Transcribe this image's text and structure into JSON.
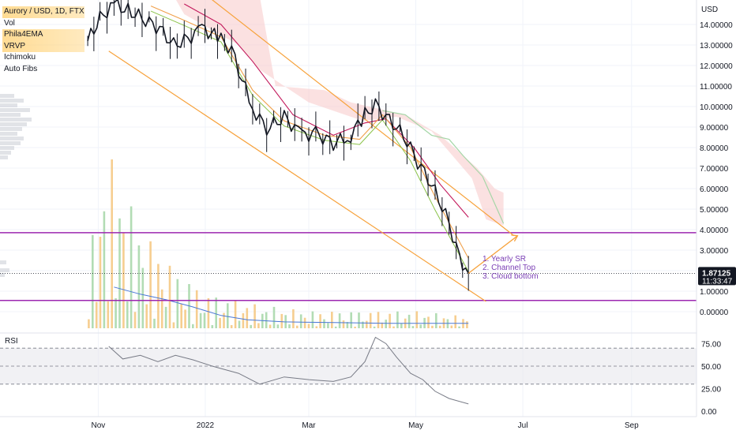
{
  "legend": {
    "symbol": "Aurory / USD, 1D, FTX",
    "indicators": [
      "Vol",
      "Phila4EMA",
      "VRVP",
      "Ichimoku",
      "Auto Fibs"
    ]
  },
  "chart_data": {
    "type": "line",
    "title": "Aurory / USD, 1D, FTX",
    "currency": "USD",
    "price_axis_ticks": [
      "14.00000",
      "13.00000",
      "12.00000",
      "11.00000",
      "10.00000",
      "9.00000",
      "8.00000",
      "7.00000",
      "6.00000",
      "5.00000",
      "4.00000",
      "3.00000",
      "2.00000",
      "1.00000",
      "0.00000"
    ],
    "price_range": [
      -0.7,
      15.4
    ],
    "time_labels": [
      "Nov",
      "2022",
      "Mar",
      "May",
      "Jul",
      "Sep"
    ],
    "time_label_dates": [
      "2021-11-01",
      "2022-01-01",
      "2022-03-01",
      "2022-05-01",
      "2022-07-01",
      "2022-09-01"
    ],
    "last_price": "1.87125",
    "countdown": "11:33:47",
    "series": [
      {
        "name": "Aurory / USD",
        "x": [
          "2021-10-26",
          "2021-11-02",
          "2021-11-10",
          "2021-11-20",
          "2021-11-28",
          "2021-12-06",
          "2021-12-14",
          "2021-12-22",
          "2021-12-30",
          "2022-01-08",
          "2022-01-16",
          "2022-01-22",
          "2022-01-28",
          "2022-02-05",
          "2022-02-15",
          "2022-02-25",
          "2022-03-05",
          "2022-03-15",
          "2022-03-25",
          "2022-04-02",
          "2022-04-08",
          "2022-04-14",
          "2022-04-20",
          "2022-04-26",
          "2022-05-02",
          "2022-05-08",
          "2022-05-14",
          "2022-05-20",
          "2022-05-26",
          "2022-05-31"
        ],
        "values": [
          13.2,
          14.3,
          15.0,
          14.6,
          14.2,
          13.8,
          13.0,
          13.3,
          13.8,
          13.4,
          12.8,
          11.3,
          9.9,
          8.9,
          9.5,
          8.6,
          8.7,
          8.2,
          8.6,
          9.6,
          10.1,
          9.5,
          9.0,
          8.3,
          7.3,
          6.5,
          5.5,
          4.3,
          2.6,
          1.87
        ]
      },
      {
        "name": "EMA fast",
        "x": [
          "2021-12-01",
          "2021-12-20",
          "2022-01-10",
          "2022-01-28",
          "2022-02-15",
          "2022-03-10",
          "2022-03-30",
          "2022-04-12",
          "2022-04-28",
          "2022-05-12",
          "2022-05-31"
        ],
        "values": [
          14.9,
          14.2,
          13.4,
          10.8,
          9.3,
          8.6,
          8.4,
          9.6,
          8.0,
          5.6,
          2.6
        ]
      },
      {
        "name": "EMA slow",
        "x": [
          "2021-12-20",
          "2022-01-10",
          "2022-01-28",
          "2022-02-20",
          "2022-03-15",
          "2022-04-02",
          "2022-04-14",
          "2022-04-30",
          "2022-05-15",
          "2022-05-31"
        ],
        "values": [
          15.0,
          14.0,
          12.2,
          9.6,
          8.6,
          9.2,
          9.4,
          8.0,
          6.2,
          4.6
        ]
      },
      {
        "name": "Volume",
        "x": [
          "2021-10-26",
          "2021-11-03",
          "2021-11-10",
          "2021-11-18",
          "2021-12-01",
          "2021-12-15",
          "2022-01-01",
          "2022-02-01",
          "2022-03-01",
          "2022-04-01",
          "2022-05-01",
          "2022-05-31"
        ],
        "values": [
          12,
          28,
          30,
          22,
          15,
          10,
          6,
          4,
          3,
          3,
          3,
          2
        ]
      }
    ],
    "levels": [
      {
        "name": "top-red",
        "value": 15.3,
        "color": "#f28b82"
      },
      {
        "name": "purple-upper",
        "value": 3.85,
        "color": "#9c27b0"
      },
      {
        "name": "purple-lower",
        "value": 0.55,
        "color": "#9c27b0"
      }
    ],
    "channel": {
      "upper": [
        [
          "2021-12-30",
          15.6
        ],
        [
          "2022-06-26",
          3.7
        ]
      ],
      "lower": [
        [
          "2021-11-07",
          12.7
        ],
        [
          "2022-06-10",
          0.5
        ]
      ],
      "color": "#f7a23b"
    },
    "annotation": {
      "lines": [
        "1. Yearly SR",
        "2. Channel Top",
        "3. Cloud bottom"
      ],
      "color": "#7b3fb5"
    },
    "rsi": {
      "label": "RSI",
      "ticks": [
        "75.00",
        "50.00",
        "25.00",
        "0.00"
      ],
      "range": [
        0,
        100
      ],
      "x": [
        "2021-11-07",
        "2021-11-15",
        "2021-11-25",
        "2021-12-05",
        "2021-12-15",
        "2021-12-25",
        "2022-01-05",
        "2022-01-20",
        "2022-02-01",
        "2022-02-15",
        "2022-03-01",
        "2022-03-15",
        "2022-03-25",
        "2022-04-02",
        "2022-04-08",
        "2022-04-14",
        "2022-04-20",
        "2022-04-28",
        "2022-05-05",
        "2022-05-12",
        "2022-05-20",
        "2022-05-31"
      ],
      "values": [
        72,
        58,
        62,
        55,
        62,
        57,
        50,
        42,
        30,
        38,
        35,
        33,
        38,
        55,
        82,
        75,
        60,
        42,
        35,
        22,
        14,
        8
      ]
    }
  }
}
